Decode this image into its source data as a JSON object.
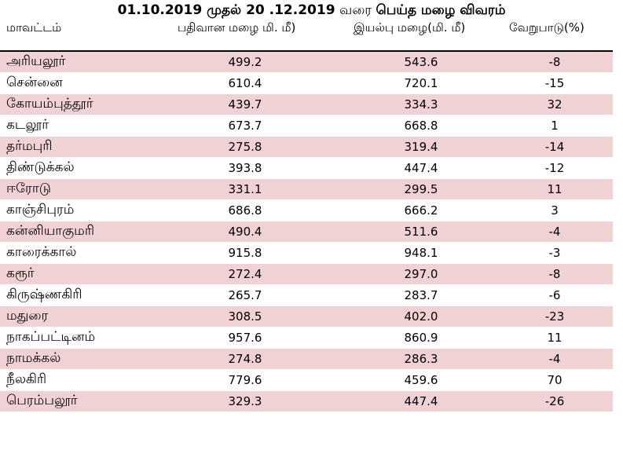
{
  "title": {
    "dates": "01.10.2019 முதல் 20 .12.2019",
    "connector": "வரை",
    "subject": "பெய்த மழை விவரம்"
  },
  "table": {
    "headers": [
      "மாவட்டம்",
      "பதிவான மழை மி. மீ)",
      "இயல்பு மழை(மி. மீ)",
      "வேறுபாடு(%)"
    ],
    "rows": [
      {
        "district": "அரியலூர்",
        "recorded": "499.2",
        "normal": "543.6",
        "diff": "-8"
      },
      {
        "district": "சென்னை",
        "recorded": "610.4",
        "normal": "720.1",
        "diff": "-15"
      },
      {
        "district": "கோயம்புத்தூர்",
        "recorded": "439.7",
        "normal": "334.3",
        "diff": "32"
      },
      {
        "district": "கடலூர்",
        "recorded": "673.7",
        "normal": "668.8",
        "diff": "1"
      },
      {
        "district": "தர்மபுரி",
        "recorded": "275.8",
        "normal": "319.4",
        "diff": "-14"
      },
      {
        "district": "திண்டுக்கல்",
        "recorded": "393.8",
        "normal": "447.4",
        "diff": "-12"
      },
      {
        "district": "ஈரோடு",
        "recorded": "331.1",
        "normal": "299.5",
        "diff": "11"
      },
      {
        "district": "காஞ்சிபுரம்",
        "recorded": "686.8",
        "normal": "666.2",
        "diff": "3"
      },
      {
        "district": "கன்னியாகுமரி",
        "recorded": "490.4",
        "normal": "511.6",
        "diff": "-4"
      },
      {
        "district": "காரைக்கால்",
        "recorded": "915.8",
        "normal": "948.1",
        "diff": "-3"
      },
      {
        "district": "கரூர்",
        "recorded": "272.4",
        "normal": "297.0",
        "diff": "-8"
      },
      {
        "district": "கிருஷ்ணகிரி",
        "recorded": "265.7",
        "normal": "283.7",
        "diff": "-6"
      },
      {
        "district": "மதுரை",
        "recorded": "308.5",
        "normal": "402.0",
        "diff": "-23"
      },
      {
        "district": "நாகப்பட்டினம்",
        "recorded": "957.6",
        "normal": "860.9",
        "diff": "11"
      },
      {
        "district": "நாமக்கல்",
        "recorded": "274.8",
        "normal": "286.3",
        "diff": "-4"
      },
      {
        "district": "நீலகிரி",
        "recorded": "779.6",
        "normal": "459.6",
        "diff": "70"
      },
      {
        "district": "பெரம்பலூர்",
        "recorded": "329.3",
        "normal": "447.4",
        "diff": "-26"
      }
    ]
  },
  "colors": {
    "band": "#f0d2d4",
    "background": "#ffffff",
    "header_rule": "#000000"
  }
}
